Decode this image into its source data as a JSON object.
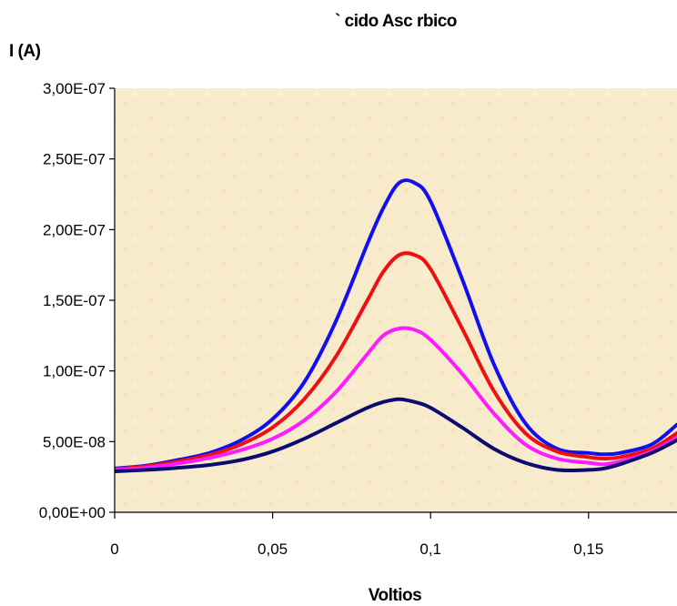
{
  "chart_data": {
    "type": "line",
    "title": "` cido Asc rbico",
    "xlabel": "Voltios",
    "ylabel": "I (A)",
    "xlim": [
      0,
      0.178
    ],
    "ylim": [
      0,
      3e-07
    ],
    "x_ticks": [
      {
        "value": 0,
        "label": "0"
      },
      {
        "value": 0.05,
        "label": "0,05"
      },
      {
        "value": 0.1,
        "label": "0,1"
      },
      {
        "value": 0.15,
        "label": "0,15"
      }
    ],
    "y_ticks": [
      {
        "value": 0,
        "label": "0,00E+00"
      },
      {
        "value": 5e-08,
        "label": "5,00E-08"
      },
      {
        "value": 1e-07,
        "label": "1,00E-07"
      },
      {
        "value": 1.5e-07,
        "label": "1,50E-07"
      },
      {
        "value": 2e-07,
        "label": "2,00E-07"
      },
      {
        "value": 2.5e-07,
        "label": "2,50E-07"
      },
      {
        "value": 3e-07,
        "label": "3,00E-07"
      }
    ],
    "grid": false,
    "legend": "none",
    "plot_background": "#f8ebcc",
    "x": [
      0,
      0.01,
      0.02,
      0.03,
      0.04,
      0.05,
      0.06,
      0.07,
      0.08,
      0.085,
      0.09,
      0.095,
      0.1,
      0.11,
      0.12,
      0.13,
      0.14,
      0.15,
      0.155,
      0.16,
      0.17,
      0.178
    ],
    "series": [
      {
        "color": "#1010ee",
        "values": [
          3.1e-08,
          3.3e-08,
          3.7e-08,
          4.2e-08,
          5.1e-08,
          6.6e-08,
          9.2e-08,
          1.35e-07,
          1.9e-07,
          2.15e-07,
          2.33e-07,
          2.33e-07,
          2.2e-07,
          1.65e-07,
          1.05e-07,
          6.3e-08,
          4.5e-08,
          4.2e-08,
          4.1e-08,
          4.2e-08,
          4.8e-08,
          6.2e-08
        ]
      },
      {
        "color": "#ee1010",
        "values": [
          3.05e-08,
          3.25e-08,
          3.6e-08,
          4.05e-08,
          4.8e-08,
          6e-08,
          8e-08,
          1.1e-07,
          1.5e-07,
          1.7e-07,
          1.82e-07,
          1.82e-07,
          1.72e-07,
          1.3e-07,
          8.6e-08,
          5.6e-08,
          4.3e-08,
          3.9e-08,
          3.8e-08,
          3.9e-08,
          4.5e-08,
          5.6e-08
        ]
      },
      {
        "color": "#ff1aff",
        "values": [
          3e-08,
          3.15e-08,
          3.45e-08,
          3.85e-08,
          4.4e-08,
          5.2e-08,
          6.5e-08,
          8.5e-08,
          1.12e-07,
          1.25e-07,
          1.3e-07,
          1.29e-07,
          1.22e-07,
          9.8e-08,
          7e-08,
          4.8e-08,
          3.8e-08,
          3.5e-08,
          3.4e-08,
          3.6e-08,
          4.3e-08,
          5.3e-08
        ]
      },
      {
        "color": "#0c0c70",
        "values": [
          2.9e-08,
          3e-08,
          3.15e-08,
          3.35e-08,
          3.7e-08,
          4.3e-08,
          5.2e-08,
          6.3e-08,
          7.4e-08,
          7.8e-08,
          8e-08,
          7.8e-08,
          7.4e-08,
          6e-08,
          4.5e-08,
          3.5e-08,
          3e-08,
          3e-08,
          3.1e-08,
          3.4e-08,
          4.2e-08,
          5.1e-08
        ]
      }
    ]
  }
}
